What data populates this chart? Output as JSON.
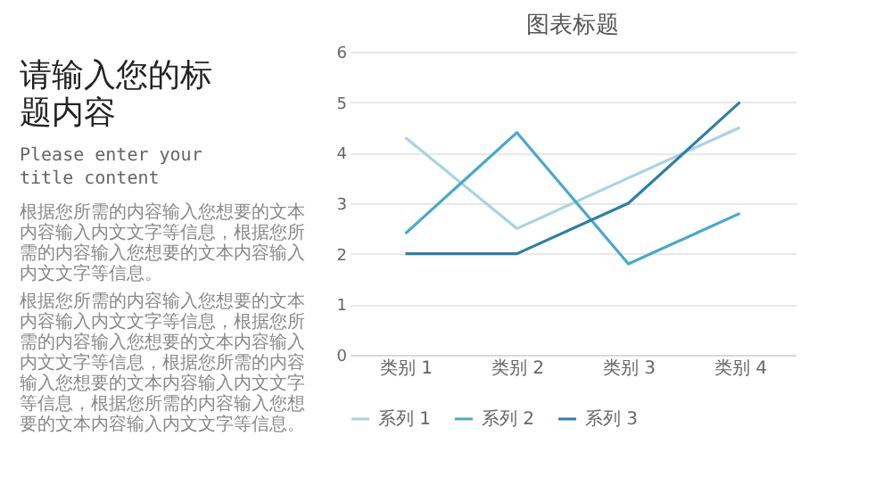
{
  "chart_data": [
    {
      "type": "other",
      "title": "请输入您的标题内容",
      "subtitle": "Please enter your title content",
      "annotations": [
        "根据您所需的内容输入您想要的文本内容输入内文文字等信息，根据您所需的内容输入您想要的文本内容输入内文文字等信息。",
        "根据您所需的内容输入您想要的文本内容输入内文文字等信息，根据您所需的内容输入您想要的文本内容输入内文文字等信息，根据您所需的内容输入您想要的文本内容输入内文文字等信息，根据您所需的内容输入您想要的文本内容输入内文文字等信息。"
      ]
    },
    {
      "type": "line",
      "title": "图表标题",
      "categories": [
        "类别 1",
        "类别 2",
        "类别 3",
        "类别 4"
      ],
      "series": [
        {
          "name": "系列 1",
          "color": "#a9d3e4",
          "values": [
            4.3,
            2.5,
            3.5,
            4.5
          ]
        },
        {
          "name": "系列 2",
          "color": "#4aa8cc",
          "values": [
            2.4,
            4.4,
            1.8,
            2.8
          ]
        },
        {
          "name": "系列 3",
          "color": "#2e7fa8",
          "values": [
            2,
            2,
            3,
            5
          ]
        }
      ],
      "ylim": [
        0,
        6
      ],
      "yticks": [
        0,
        1,
        2,
        3,
        4,
        5,
        6
      ],
      "grid": "y",
      "legend": "bottom",
      "marker": "none",
      "line_style": "solid"
    }
  ]
}
